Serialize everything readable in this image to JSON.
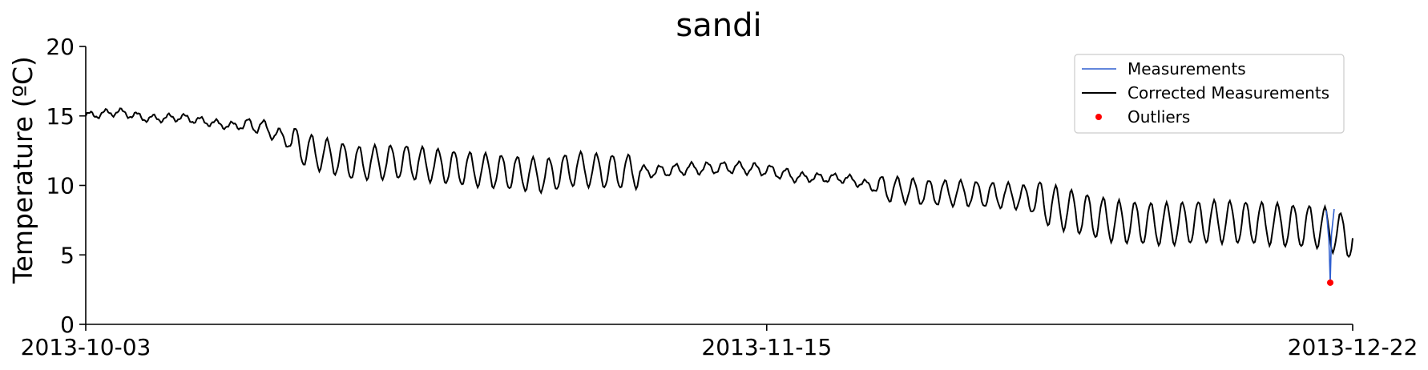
{
  "chart_data": {
    "type": "line",
    "title": "sandi",
    "xlabel": "",
    "ylabel": "Temperature (ºC)",
    "ylim": [
      0,
      20
    ],
    "yticks": [
      0,
      5,
      10,
      15,
      20
    ],
    "xlim": [
      "2013-10-03",
      "2013-12-22"
    ],
    "xticks": [
      "2013-10-03",
      "2013-11-15",
      "2013-12-22"
    ],
    "grid": false,
    "legend_position": "top-right",
    "series": [
      {
        "name": "Measurements",
        "color": "#2f5fd0",
        "values": [
          [
            "2013-12-20 08:00",
            8.2
          ],
          [
            "2013-12-20 12:00",
            6.0
          ],
          [
            "2013-12-20 14:00",
            3.0
          ],
          [
            "2013-12-20 16:00",
            6.5
          ],
          [
            "2013-12-20 20:00",
            8.3
          ]
        ]
      },
      {
        "name": "Corrected Measurements",
        "color": "#000000",
        "values": [
          [
            "2013-10-03",
            15.0
          ],
          [
            "2013-10-05",
            15.3
          ],
          [
            "2013-10-07",
            14.8
          ],
          [
            "2013-10-09",
            14.9
          ],
          [
            "2013-10-12",
            14.3
          ],
          [
            "2013-10-14",
            14.3
          ],
          [
            "2013-10-17",
            12.5
          ],
          [
            "2013-10-20",
            11.6
          ],
          [
            "2013-10-23",
            11.7
          ],
          [
            "2013-10-26",
            11.3
          ],
          [
            "2013-10-29",
            11.0
          ],
          [
            "2013-11-01",
            10.7
          ],
          [
            "2013-11-03",
            11.2
          ],
          [
            "2013-11-05",
            11.0
          ],
          [
            "2013-11-08",
            11.0
          ],
          [
            "2013-11-10",
            11.2
          ],
          [
            "2013-11-13",
            11.3
          ],
          [
            "2013-11-15",
            11.1
          ],
          [
            "2013-11-17",
            10.6
          ],
          [
            "2013-11-20",
            10.5
          ],
          [
            "2013-11-22",
            9.8
          ],
          [
            "2013-11-25",
            9.5
          ],
          [
            "2013-11-28",
            9.4
          ],
          [
            "2013-12-01",
            9.2
          ],
          [
            "2013-12-04",
            8.2
          ],
          [
            "2013-12-07",
            7.4
          ],
          [
            "2013-12-10",
            7.2
          ],
          [
            "2013-12-13",
            7.4
          ],
          [
            "2013-12-16",
            7.3
          ],
          [
            "2013-12-18",
            7.1
          ],
          [
            "2013-12-20",
            7.0
          ],
          [
            "2013-12-22",
            6.2
          ]
        ]
      },
      {
        "name": "Outliers",
        "color": "#ff0000",
        "values": [
          [
            "2013-12-20 14:00",
            3.0
          ]
        ]
      }
    ]
  }
}
